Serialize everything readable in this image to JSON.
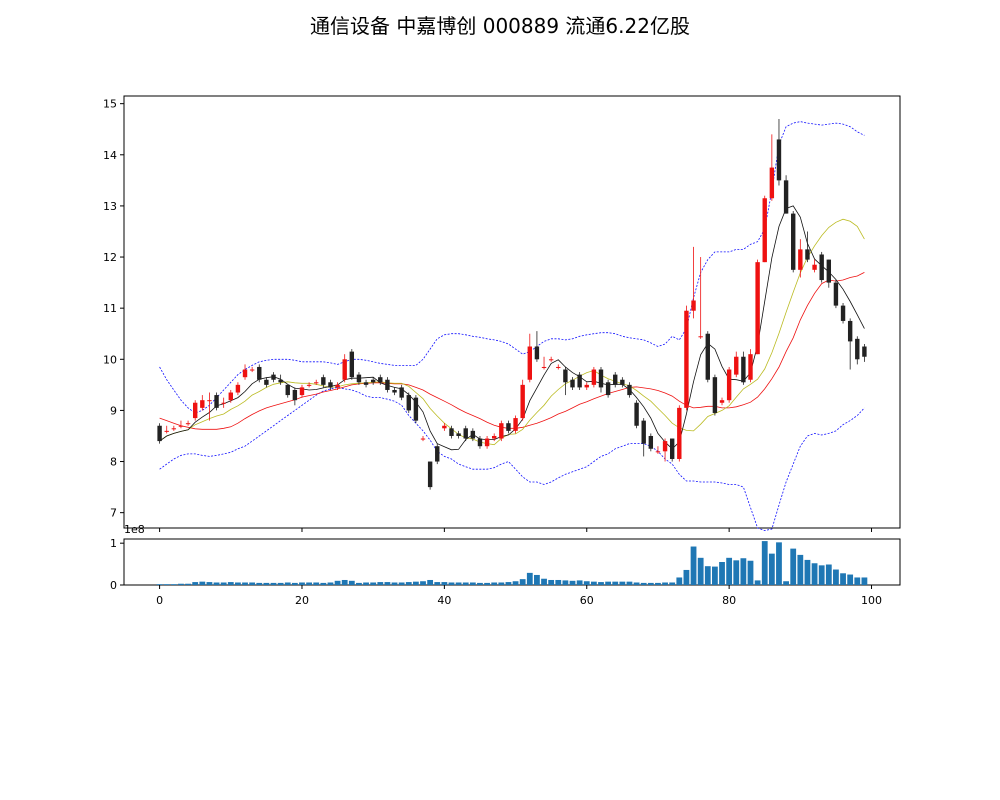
{
  "title": "通信设备 中嘉博创 000889 流通6.22亿股",
  "chart_data": [
    {
      "type": "candlestick",
      "x_ticks": [
        "0",
        "20",
        "40",
        "60",
        "80",
        "100"
      ],
      "y_ticks": [
        "7",
        "8",
        "9",
        "10",
        "11",
        "12",
        "13",
        "14",
        "15"
      ],
      "xlim": [
        -5,
        104
      ],
      "ylim": [
        6.7,
        15.15
      ],
      "colors": {
        "up": "#ee1111",
        "down": "#222222",
        "ma5": "#111111",
        "ma10": "#bbbb22",
        "ma20": "#ee1111",
        "band": "#1111ff"
      },
      "close": [
        8.4,
        8.6,
        8.65,
        8.7,
        8.75,
        9.15,
        9.2,
        9.2,
        9.05,
        9.15,
        9.35,
        9.5,
        9.8,
        9.8,
        9.6,
        9.5,
        9.6,
        9.55,
        9.3,
        9.2,
        9.45,
        9.5,
        9.55,
        9.5,
        9.45,
        9.5,
        10.0,
        9.65,
        9.55,
        9.5,
        9.55,
        9.55,
        9.4,
        9.35,
        9.25,
        9.0,
        8.8,
        8.45,
        7.5,
        8.0,
        8.7,
        8.5,
        8.5,
        8.45,
        8.45,
        8.3,
        8.45,
        8.5,
        8.75,
        8.6,
        8.85,
        9.5,
        10.25,
        10.0,
        9.85,
        10.0,
        9.85,
        9.55,
        9.45,
        9.45,
        9.5,
        9.8,
        9.45,
        9.3,
        9.5,
        9.5,
        9.3,
        8.7,
        8.35,
        8.25,
        8.2,
        8.4,
        8.05,
        9.05,
        10.95,
        11.15,
        10.45,
        9.6,
        8.95,
        9.2,
        9.8,
        10.05,
        9.55,
        10.1,
        11.9,
        13.15,
        13.75,
        13.5,
        12.85,
        11.75,
        12.15,
        11.95,
        11.85,
        11.55,
        11.5,
        11.05,
        10.75,
        10.35,
        10.0,
        10.05
      ],
      "open": [
        8.7,
        8.6,
        8.65,
        8.7,
        8.75,
        8.85,
        9.05,
        9.2,
        9.3,
        9.15,
        9.2,
        9.35,
        9.65,
        9.8,
        9.85,
        9.6,
        9.7,
        9.6,
        9.5,
        9.4,
        9.3,
        9.5,
        9.55,
        9.65,
        9.55,
        9.45,
        9.6,
        10.15,
        9.7,
        9.55,
        9.6,
        9.65,
        9.6,
        9.4,
        9.45,
        9.3,
        9.25,
        8.45,
        8.0,
        8.3,
        8.65,
        8.65,
        8.55,
        8.65,
        8.6,
        8.45,
        8.3,
        8.45,
        8.45,
        8.75,
        8.6,
        8.85,
        9.6,
        10.25,
        9.85,
        10.0,
        9.85,
        9.8,
        9.6,
        9.7,
        9.45,
        9.5,
        9.8,
        9.55,
        9.7,
        9.6,
        9.5,
        9.15,
        8.8,
        8.5,
        8.2,
        8.2,
        8.45,
        8.05,
        9.05,
        10.95,
        10.45,
        10.5,
        9.65,
        9.15,
        9.2,
        9.7,
        10.05,
        9.6,
        10.1,
        11.9,
        13.15,
        14.3,
        13.5,
        12.85,
        11.75,
        12.15,
        11.75,
        12.05,
        11.95,
        11.5,
        11.05,
        10.75,
        10.4,
        10.25
      ],
      "high": [
        8.75,
        8.7,
        8.7,
        8.8,
        8.8,
        9.2,
        9.3,
        9.35,
        9.35,
        9.25,
        9.4,
        9.55,
        9.9,
        9.85,
        9.9,
        9.65,
        9.75,
        9.7,
        9.5,
        9.45,
        9.5,
        9.55,
        9.6,
        9.7,
        9.6,
        9.55,
        10.1,
        10.2,
        9.75,
        9.6,
        9.65,
        9.7,
        9.65,
        9.45,
        9.5,
        9.35,
        9.3,
        8.5,
        8.0,
        8.35,
        8.75,
        8.7,
        8.6,
        8.7,
        8.65,
        8.5,
        8.5,
        8.55,
        8.8,
        8.8,
        8.9,
        9.6,
        10.5,
        10.55,
        10.05,
        10.05,
        9.9,
        9.85,
        9.65,
        9.75,
        9.55,
        9.85,
        9.85,
        9.6,
        9.75,
        9.65,
        9.55,
        9.2,
        8.85,
        8.55,
        8.3,
        8.45,
        8.45,
        9.1,
        11.05,
        12.2,
        12.0,
        10.55,
        9.7,
        9.25,
        9.85,
        10.15,
        10.15,
        10.2,
        11.95,
        13.2,
        14.4,
        14.7,
        13.6,
        12.9,
        12.35,
        12.5,
        11.95,
        12.1,
        11.95,
        11.55,
        11.1,
        10.8,
        10.45,
        10.3
      ],
      "low": [
        8.35,
        8.55,
        8.6,
        8.65,
        8.7,
        8.8,
        9.0,
        8.8,
        9.0,
        9.05,
        9.15,
        9.3,
        9.6,
        9.75,
        9.55,
        9.45,
        9.55,
        9.5,
        9.25,
        9.1,
        9.25,
        9.45,
        9.5,
        9.45,
        9.4,
        9.4,
        9.55,
        9.6,
        9.5,
        9.45,
        9.5,
        9.5,
        9.35,
        9.3,
        9.2,
        8.95,
        8.75,
        8.4,
        7.45,
        7.95,
        8.6,
        8.45,
        8.45,
        8.4,
        8.4,
        8.25,
        8.25,
        8.4,
        8.4,
        8.55,
        8.55,
        8.8,
        9.55,
        9.95,
        9.8,
        9.95,
        9.8,
        9.3,
        9.4,
        9.4,
        9.4,
        9.45,
        9.35,
        9.25,
        9.45,
        9.45,
        9.25,
        8.65,
        8.1,
        8.2,
        8.15,
        8.0,
        8.0,
        8.0,
        9.0,
        10.8,
        10.4,
        9.55,
        8.9,
        9.1,
        9.15,
        9.65,
        9.5,
        9.55,
        10.1,
        11.9,
        13.1,
        13.4,
        12.85,
        11.7,
        11.6,
        11.9,
        11.7,
        11.5,
        11.4,
        11.0,
        10.7,
        9.8,
        9.9,
        9.95
      ],
      "ma5": [
        8.4,
        8.5,
        8.55,
        8.59,
        8.62,
        8.77,
        8.87,
        8.96,
        9.09,
        9.13,
        9.19,
        9.25,
        9.37,
        9.52,
        9.61,
        9.64,
        9.66,
        9.61,
        9.51,
        9.43,
        9.42,
        9.4,
        9.41,
        9.44,
        9.47,
        9.5,
        9.6,
        9.63,
        9.63,
        9.64,
        9.65,
        9.54,
        9.49,
        9.45,
        9.42,
        9.31,
        9.16,
        8.97,
        8.6,
        8.35,
        8.29,
        8.23,
        8.24,
        8.43,
        8.53,
        8.44,
        8.43,
        8.43,
        8.49,
        8.52,
        8.64,
        8.83,
        9.19,
        9.44,
        9.69,
        9.92,
        9.99,
        9.85,
        9.74,
        9.66,
        9.56,
        9.57,
        9.53,
        9.5,
        9.51,
        9.51,
        9.41,
        9.25,
        9.07,
        8.85,
        8.55,
        8.38,
        8.25,
        8.38,
        8.93,
        9.56,
        10.09,
        10.31,
        10.2,
        9.86,
        9.61,
        9.6,
        9.57,
        9.74,
        10.28,
        11.13,
        11.99,
        12.6,
        12.95,
        13.0,
        12.78,
        12.27,
        11.96,
        11.83,
        11.71,
        11.56,
        11.37,
        11.13,
        10.87,
        10.6
      ],
      "ma10": [
        8.4,
        8.5,
        8.55,
        8.59,
        8.62,
        8.72,
        8.78,
        8.84,
        8.89,
        8.93,
        9.02,
        9.09,
        9.18,
        9.3,
        9.37,
        9.45,
        9.51,
        9.54,
        9.56,
        9.54,
        9.53,
        9.53,
        9.51,
        9.48,
        9.45,
        9.46,
        9.5,
        9.52,
        9.53,
        9.54,
        9.55,
        9.56,
        9.54,
        9.53,
        9.53,
        9.47,
        9.35,
        9.23,
        9.04,
        8.89,
        8.75,
        8.64,
        8.53,
        8.46,
        8.44,
        8.38,
        8.35,
        8.33,
        8.45,
        8.53,
        8.54,
        8.63,
        8.81,
        8.96,
        9.1,
        9.28,
        9.41,
        9.52,
        9.59,
        9.67,
        9.74,
        9.78,
        9.69,
        9.62,
        9.57,
        9.52,
        9.48,
        9.39,
        9.28,
        9.18,
        9.04,
        8.9,
        8.75,
        8.66,
        8.61,
        8.6,
        8.73,
        8.88,
        8.94,
        9.0,
        9.09,
        9.26,
        9.42,
        9.51,
        9.61,
        9.81,
        10.13,
        10.51,
        10.92,
        11.31,
        11.69,
        11.99,
        12.22,
        12.42,
        12.58,
        12.68,
        12.74,
        12.7,
        12.6,
        12.35
      ],
      "ma20": [
        8.85,
        8.8,
        8.75,
        8.7,
        8.67,
        8.64,
        8.63,
        8.63,
        8.63,
        8.65,
        8.68,
        8.75,
        8.84,
        8.92,
        8.99,
        9.05,
        9.09,
        9.13,
        9.17,
        9.21,
        9.26,
        9.29,
        9.32,
        9.36,
        9.39,
        9.42,
        9.46,
        9.5,
        9.52,
        9.53,
        9.54,
        9.54,
        9.53,
        9.52,
        9.52,
        9.5,
        9.45,
        9.4,
        9.32,
        9.25,
        9.18,
        9.11,
        9.03,
        8.96,
        8.9,
        8.84,
        8.77,
        8.71,
        8.67,
        8.65,
        8.65,
        8.67,
        8.71,
        8.75,
        8.8,
        8.86,
        8.93,
        8.98,
        9.05,
        9.12,
        9.17,
        9.23,
        9.28,
        9.33,
        9.37,
        9.41,
        9.45,
        9.46,
        9.44,
        9.42,
        9.39,
        9.34,
        9.28,
        9.18,
        9.1,
        9.05,
        9.06,
        9.08,
        9.08,
        9.05,
        9.05,
        9.07,
        9.11,
        9.16,
        9.26,
        9.42,
        9.62,
        9.85,
        10.15,
        10.42,
        10.77,
        11.05,
        11.29,
        11.48,
        11.55,
        11.53,
        11.55,
        11.6,
        11.63,
        11.7
      ],
      "upper": [
        9.85,
        9.6,
        9.4,
        9.2,
        9.05,
        8.95,
        9.0,
        9.1,
        9.25,
        9.4,
        9.55,
        9.7,
        9.8,
        9.88,
        9.95,
        9.98,
        10.0,
        10.0,
        10.0,
        9.98,
        9.95,
        9.95,
        9.95,
        9.95,
        9.93,
        9.9,
        9.95,
        10.0,
        10.0,
        9.98,
        9.95,
        9.92,
        9.9,
        9.88,
        9.88,
        9.88,
        9.88,
        10.0,
        10.2,
        10.4,
        10.48,
        10.5,
        10.5,
        10.48,
        10.45,
        10.43,
        10.4,
        10.38,
        10.35,
        10.3,
        10.2,
        10.1,
        10.15,
        10.25,
        10.35,
        10.4,
        10.4,
        10.38,
        10.4,
        10.45,
        10.48,
        10.5,
        10.52,
        10.52,
        10.5,
        10.45,
        10.42,
        10.4,
        10.38,
        10.32,
        10.25,
        10.3,
        10.45,
        10.38,
        10.6,
        11.2,
        11.7,
        11.95,
        12.1,
        12.1,
        12.1,
        12.15,
        12.15,
        12.25,
        12.3,
        12.55,
        13.3,
        14.2,
        14.55,
        14.62,
        14.65,
        14.62,
        14.6,
        14.58,
        14.6,
        14.62,
        14.6,
        14.55,
        14.45,
        14.38
      ],
      "lower": [
        7.85,
        7.95,
        8.05,
        8.12,
        8.15,
        8.15,
        8.12,
        8.1,
        8.12,
        8.15,
        8.18,
        8.25,
        8.3,
        8.4,
        8.5,
        8.6,
        8.7,
        8.8,
        8.9,
        9.0,
        9.1,
        9.2,
        9.3,
        9.38,
        9.42,
        9.45,
        9.42,
        9.4,
        9.35,
        9.28,
        9.25,
        9.25,
        9.22,
        9.18,
        9.1,
        8.9,
        8.75,
        8.6,
        8.42,
        8.2,
        8.1,
        8.05,
        7.95,
        7.9,
        7.85,
        7.85,
        7.85,
        7.88,
        7.95,
        8.0,
        7.85,
        7.7,
        7.6,
        7.6,
        7.55,
        7.6,
        7.68,
        7.75,
        7.8,
        7.85,
        7.9,
        8.0,
        8.1,
        8.15,
        8.25,
        8.3,
        8.35,
        8.35,
        8.35,
        8.3,
        8.2,
        8.05,
        7.95,
        7.75,
        7.62,
        7.62,
        7.6,
        7.6,
        7.6,
        7.58,
        7.55,
        7.55,
        7.5,
        7.1,
        6.7,
        6.65,
        6.68,
        7.15,
        7.6,
        7.95,
        8.3,
        8.5,
        8.55,
        8.52,
        8.55,
        8.6,
        8.72,
        8.8,
        8.9,
        9.05
      ]
    },
    {
      "type": "bar",
      "x_ticks": [
        "0",
        "20",
        "40",
        "60",
        "80",
        "100"
      ],
      "y_ticks": [
        "0",
        "1"
      ],
      "offset_label": "1e8",
      "xlim": [
        -5,
        104
      ],
      "ylim": [
        0,
        1.1
      ],
      "color": "#1f77b4",
      "values": [
        0.02,
        0.02,
        0.02,
        0.03,
        0.03,
        0.07,
        0.08,
        0.07,
        0.06,
        0.06,
        0.07,
        0.06,
        0.06,
        0.06,
        0.05,
        0.05,
        0.05,
        0.05,
        0.06,
        0.05,
        0.06,
        0.06,
        0.06,
        0.05,
        0.06,
        0.1,
        0.12,
        0.1,
        0.05,
        0.06,
        0.06,
        0.07,
        0.07,
        0.06,
        0.06,
        0.07,
        0.08,
        0.09,
        0.12,
        0.07,
        0.07,
        0.06,
        0.06,
        0.06,
        0.06,
        0.05,
        0.05,
        0.06,
        0.06,
        0.07,
        0.09,
        0.14,
        0.29,
        0.24,
        0.15,
        0.12,
        0.12,
        0.11,
        0.1,
        0.11,
        0.09,
        0.08,
        0.07,
        0.08,
        0.08,
        0.08,
        0.08,
        0.06,
        0.05,
        0.05,
        0.05,
        0.06,
        0.06,
        0.18,
        0.36,
        0.92,
        0.65,
        0.45,
        0.44,
        0.55,
        0.65,
        0.59,
        0.64,
        0.58,
        0.11,
        1.05,
        0.75,
        1.02,
        0.09,
        0.87,
        0.72,
        0.6,
        0.52,
        0.47,
        0.49,
        0.37,
        0.28,
        0.25,
        0.18,
        0.18
      ]
    }
  ]
}
